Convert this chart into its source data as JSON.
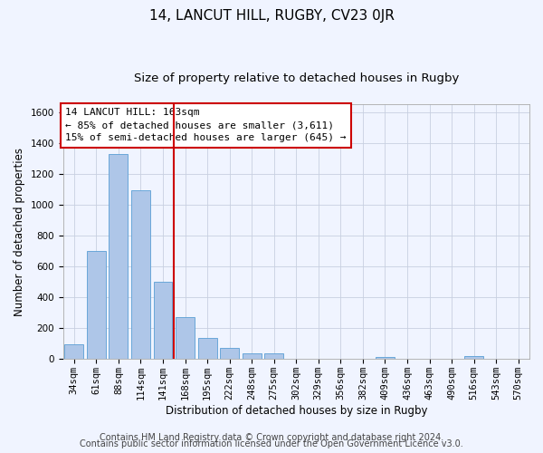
{
  "title": "14, LANCUT HILL, RUGBY, CV23 0JR",
  "subtitle": "Size of property relative to detached houses in Rugby",
  "xlabel": "Distribution of detached houses by size in Rugby",
  "ylabel": "Number of detached properties",
  "bar_labels": [
    "34sqm",
    "61sqm",
    "88sqm",
    "114sqm",
    "141sqm",
    "168sqm",
    "195sqm",
    "222sqm",
    "248sqm",
    "275sqm",
    "302sqm",
    "329sqm",
    "356sqm",
    "382sqm",
    "409sqm",
    "436sqm",
    "463sqm",
    "490sqm",
    "516sqm",
    "543sqm",
    "570sqm"
  ],
  "bar_values": [
    95,
    700,
    1330,
    1095,
    500,
    270,
    137,
    72,
    35,
    35,
    0,
    0,
    0,
    0,
    15,
    0,
    0,
    0,
    18,
    0,
    0
  ],
  "bar_color": "#aec6e8",
  "bar_edge_color": "#5a9fd4",
  "ylim": [
    0,
    1650
  ],
  "yticks": [
    0,
    200,
    400,
    600,
    800,
    1000,
    1200,
    1400,
    1600
  ],
  "vline_x": 4.5,
  "vline_color": "#cc0000",
  "annotation_text": "14 LANCUT HILL: 163sqm\n← 85% of detached houses are smaller (3,611)\n15% of semi-detached houses are larger (645) →",
  "footer1": "Contains HM Land Registry data © Crown copyright and database right 2024.",
  "footer2": "Contains public sector information licensed under the Open Government Licence v3.0.",
  "background_color": "#f0f4ff",
  "plot_background": "#f0f4ff",
  "grid_color": "#c8d0e0",
  "title_fontsize": 11,
  "subtitle_fontsize": 9.5,
  "axis_label_fontsize": 8.5,
  "tick_fontsize": 7.5,
  "annotation_fontsize": 8,
  "footer_fontsize": 7
}
